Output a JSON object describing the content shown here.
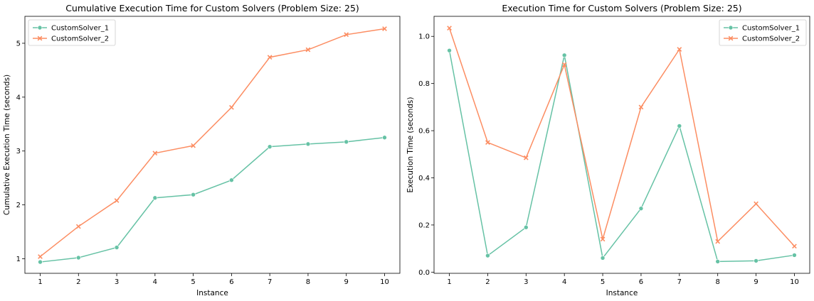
{
  "chart_data": [
    {
      "type": "line",
      "title": "Cumulative Execution Time for Custom Solvers (Problem Size: 25)",
      "xlabel": "Instance",
      "ylabel": "Cumulative Execution Time (seconds)",
      "x": [
        1,
        2,
        3,
        4,
        5,
        6,
        7,
        8,
        9,
        10
      ],
      "xlim": [
        0.6,
        10.4
      ],
      "ylim": [
        0.73,
        5.5
      ],
      "yticks": [
        1,
        2,
        3,
        4,
        5
      ],
      "grid": false,
      "legend_position": "upper left",
      "series": [
        {
          "name": "CustomSolver_1",
          "color": "#66c2a5",
          "marker": "circle",
          "values": [
            0.94,
            1.02,
            1.21,
            2.13,
            2.19,
            2.46,
            3.08,
            3.13,
            3.17,
            3.25
          ]
        },
        {
          "name": "CustomSolver_2",
          "color": "#fc8d62",
          "marker": "x",
          "values": [
            1.04,
            1.6,
            2.08,
            2.96,
            3.1,
            3.81,
            4.74,
            4.88,
            5.16,
            5.27
          ]
        }
      ]
    },
    {
      "type": "line",
      "title": "Execution Time for Custom Solvers (Problem Size: 25)",
      "xlabel": "Instance",
      "ylabel": "Execution Time (seconds)",
      "x": [
        1,
        2,
        3,
        4,
        5,
        6,
        7,
        8,
        9,
        10
      ],
      "xlim": [
        0.6,
        10.4
      ],
      "ylim": [
        -0.005,
        1.085
      ],
      "yticks": [
        0.0,
        0.2,
        0.4,
        0.6,
        0.8,
        1.0
      ],
      "grid": false,
      "legend_position": "upper right",
      "series": [
        {
          "name": "CustomSolver_1",
          "color": "#66c2a5",
          "marker": "circle",
          "values": [
            0.94,
            0.07,
            0.19,
            0.92,
            0.06,
            0.27,
            0.62,
            0.045,
            0.048,
            0.072
          ]
        },
        {
          "name": "CustomSolver_2",
          "color": "#fc8d62",
          "marker": "x",
          "values": [
            1.035,
            0.55,
            0.485,
            0.88,
            0.14,
            0.7,
            0.945,
            0.13,
            0.29,
            0.11
          ]
        }
      ]
    }
  ]
}
